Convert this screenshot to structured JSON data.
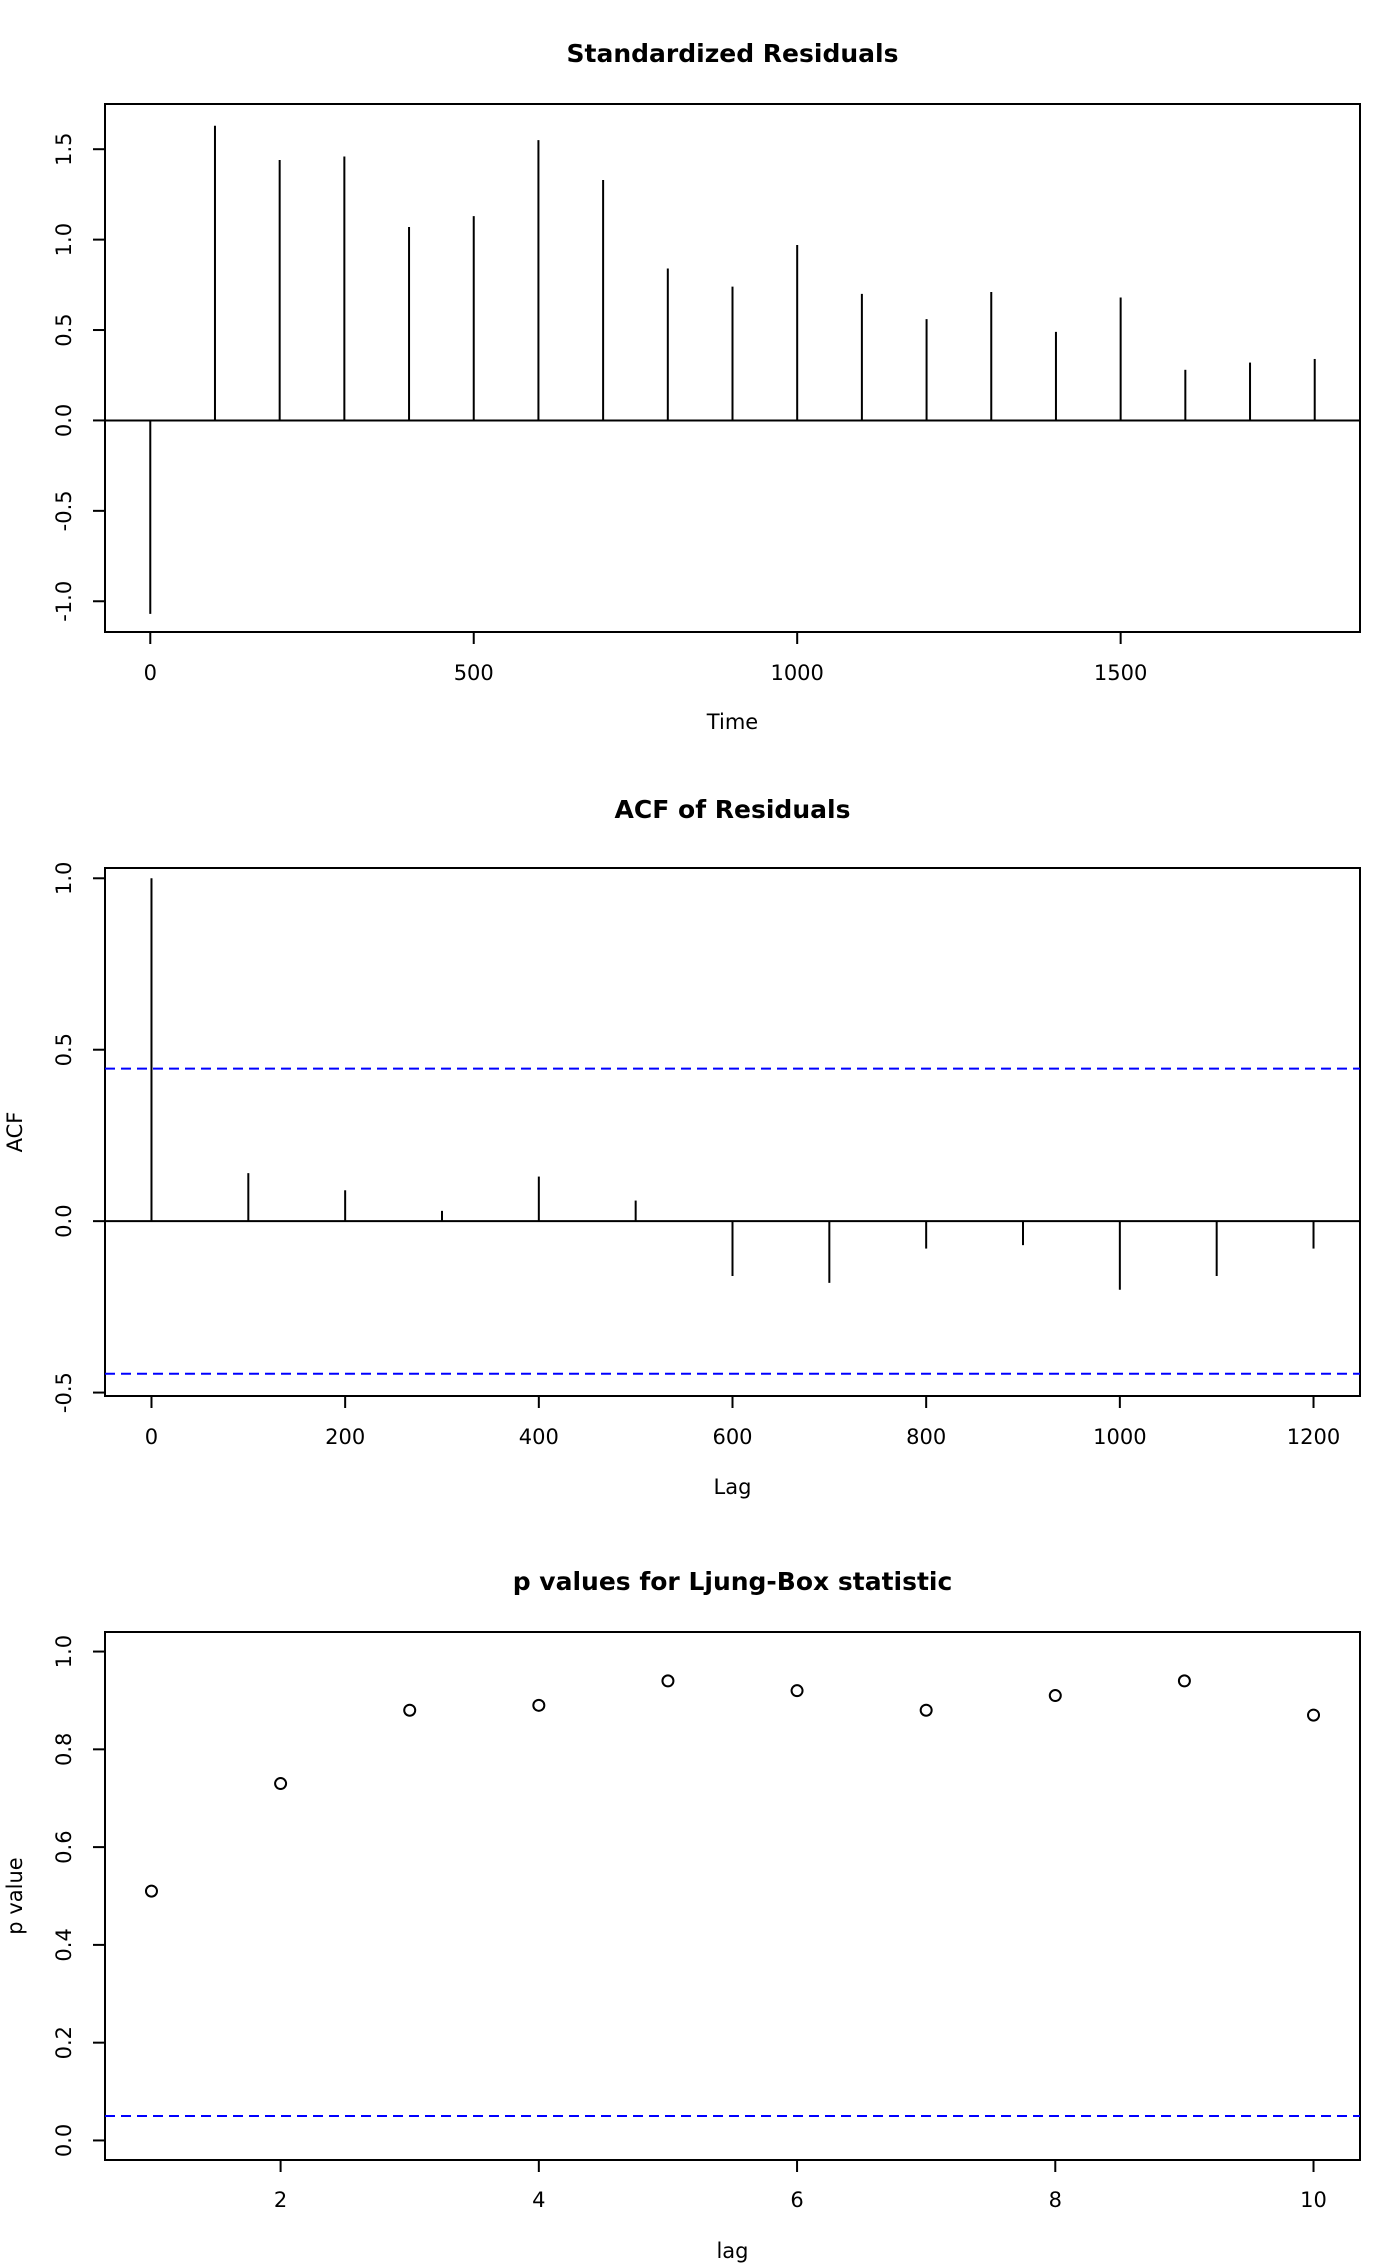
{
  "chart_data": [
    {
      "type": "stem",
      "title": "Standardized Residuals",
      "xlabel": "Time",
      "ylabel": "",
      "xlim": [
        -70,
        1870
      ],
      "ylim": [
        -1.17,
        1.75
      ],
      "xticks": [
        0,
        500,
        1000,
        1500
      ],
      "xtick_labels": [
        "0",
        "500",
        "1000",
        "1500"
      ],
      "yticks": [
        -1.0,
        -0.5,
        0.0,
        0.5,
        1.0,
        1.5
      ],
      "ytick_labels": [
        "-1.0",
        "-0.5",
        "0.0",
        "0.5",
        "1.0",
        "1.5"
      ],
      "zero_line": true,
      "x": [
        0,
        100,
        200,
        300,
        400,
        500,
        600,
        700,
        800,
        900,
        1000,
        1100,
        1200,
        1300,
        1400,
        1500,
        1600,
        1700,
        1800
      ],
      "values": [
        -1.07,
        1.63,
        1.44,
        1.46,
        1.07,
        1.13,
        1.55,
        1.33,
        0.84,
        0.74,
        0.97,
        0.7,
        0.56,
        0.71,
        0.49,
        0.68,
        0.28,
        0.32,
        0.34
      ]
    },
    {
      "type": "stem",
      "title": "ACF of Residuals",
      "xlabel": "Lag",
      "ylabel": "ACF",
      "xlim": [
        -48,
        1248
      ],
      "ylim": [
        -0.51,
        1.03
      ],
      "xticks": [
        0,
        200,
        400,
        600,
        800,
        1000,
        1200
      ],
      "xtick_labels": [
        "0",
        "200",
        "400",
        "600",
        "800",
        "1000",
        "1200"
      ],
      "yticks": [
        -0.5,
        0.0,
        0.5,
        1.0
      ],
      "ytick_labels": [
        "-0.5",
        "0.0",
        "0.5",
        "1.0"
      ],
      "zero_line": true,
      "x": [
        0,
        100,
        200,
        300,
        400,
        500,
        600,
        700,
        800,
        900,
        1000,
        1100,
        1200
      ],
      "values": [
        1.0,
        0.14,
        0.09,
        0.03,
        0.13,
        0.06,
        -0.16,
        -0.18,
        -0.08,
        -0.07,
        -0.2,
        -0.16,
        -0.08
      ],
      "reference_lines": [
        0.445,
        -0.445
      ],
      "reference_color": "#0000ff"
    },
    {
      "type": "scatter",
      "title": "p values for Ljung-Box statistic",
      "xlabel": "lag",
      "ylabel": "p value",
      "xlim": [
        0.64,
        10.36
      ],
      "ylim": [
        -0.04,
        1.04
      ],
      "xticks": [
        2,
        4,
        6,
        8,
        10
      ],
      "xtick_labels": [
        "2",
        "4",
        "6",
        "8",
        "10"
      ],
      "yticks": [
        0.0,
        0.2,
        0.4,
        0.6,
        0.8,
        1.0
      ],
      "ytick_labels": [
        "0.0",
        "0.2",
        "0.4",
        "0.6",
        "0.8",
        "1.0"
      ],
      "x": [
        1,
        2,
        3,
        4,
        5,
        6,
        7,
        8,
        9,
        10
      ],
      "values": [
        0.51,
        0.73,
        0.88,
        0.89,
        0.94,
        0.92,
        0.88,
        0.91,
        0.94,
        0.87
      ],
      "reference_lines": [
        0.05
      ],
      "reference_color": "#0000ff"
    }
  ]
}
